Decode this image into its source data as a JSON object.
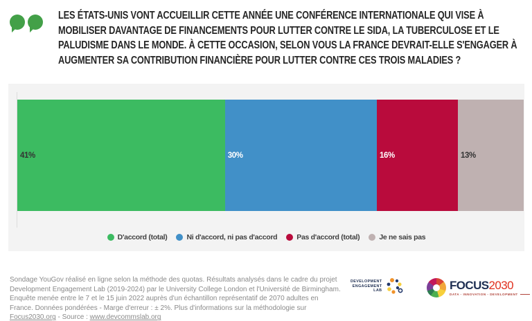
{
  "header": {
    "question": "LES ÉTATS-UNIS VONT ACCUEILLIR CETTE ANNÉE UNE CONFÉRENCE INTERNATIONALE QUI VISE À MOBILISER DAVANTAGE DE FINANCEMENTS POUR LUTTER CONTRE LE SIDA, LA TUBERCULOSE ET LE PALUDISME DANS LE MONDE. À CETTE OCCASION, SELON VOUS LA FRANCE DEVRAIT-ELLE S'ENGAGER À AUGMENTER SA CONTRIBUTION FINANCIÈRE POUR LUTTER CONTRE CES TROIS MALADIES ?",
    "bubble_color": "#43a048"
  },
  "chart_data": {
    "type": "bar",
    "variant": "horizontal-stacked",
    "categories": [
      "D'accord (total)",
      "Ni d'accord, ni pas d'accord",
      "Pas d'accord (total)",
      "Je ne sais pas"
    ],
    "values": [
      41,
      30,
      16,
      13
    ],
    "labels": [
      "41%",
      "30%",
      "16%",
      "13%"
    ],
    "colors": [
      "#3cbb61",
      "#4190c8",
      "#b90b3c",
      "#bfb1b1"
    ],
    "label_text_colors": [
      "#333333",
      "#ffffff",
      "#ffffff",
      "#333333"
    ],
    "xlim": [
      0,
      100
    ],
    "legend_position": "bottom-center",
    "panel_background": "#f3f3f3"
  },
  "footer": {
    "text_before_links": "Sondage YouGov réalisé en ligne selon la méthode des quotas. Résultats analysés dans le cadre du projet Development Engagement Lab (2019-2024) par le University College London et l'Université de Birmingham. Enquête menée entre le 7 et le 15 juin 2022 auprès d'un échantillon représentatif de 2070 adultes en France. Données pondérées - Marge d'erreur : ± 2%. Plus d'informations sur la méthodologie sur ",
    "link1": "Focus2030.org",
    "separator": " - Source : ",
    "link2": "www.devcommslab.org"
  },
  "logos": {
    "del": {
      "lines": [
        "DEVELOPMENT",
        "ENGAGEMENT",
        "LAB"
      ]
    },
    "focus2030": {
      "name_dark": "FOCUS",
      "name_accent": "2030",
      "accent_color": "#e0301e",
      "tagline": "DATA - INNOVATION - DEVELOPMENT"
    }
  }
}
